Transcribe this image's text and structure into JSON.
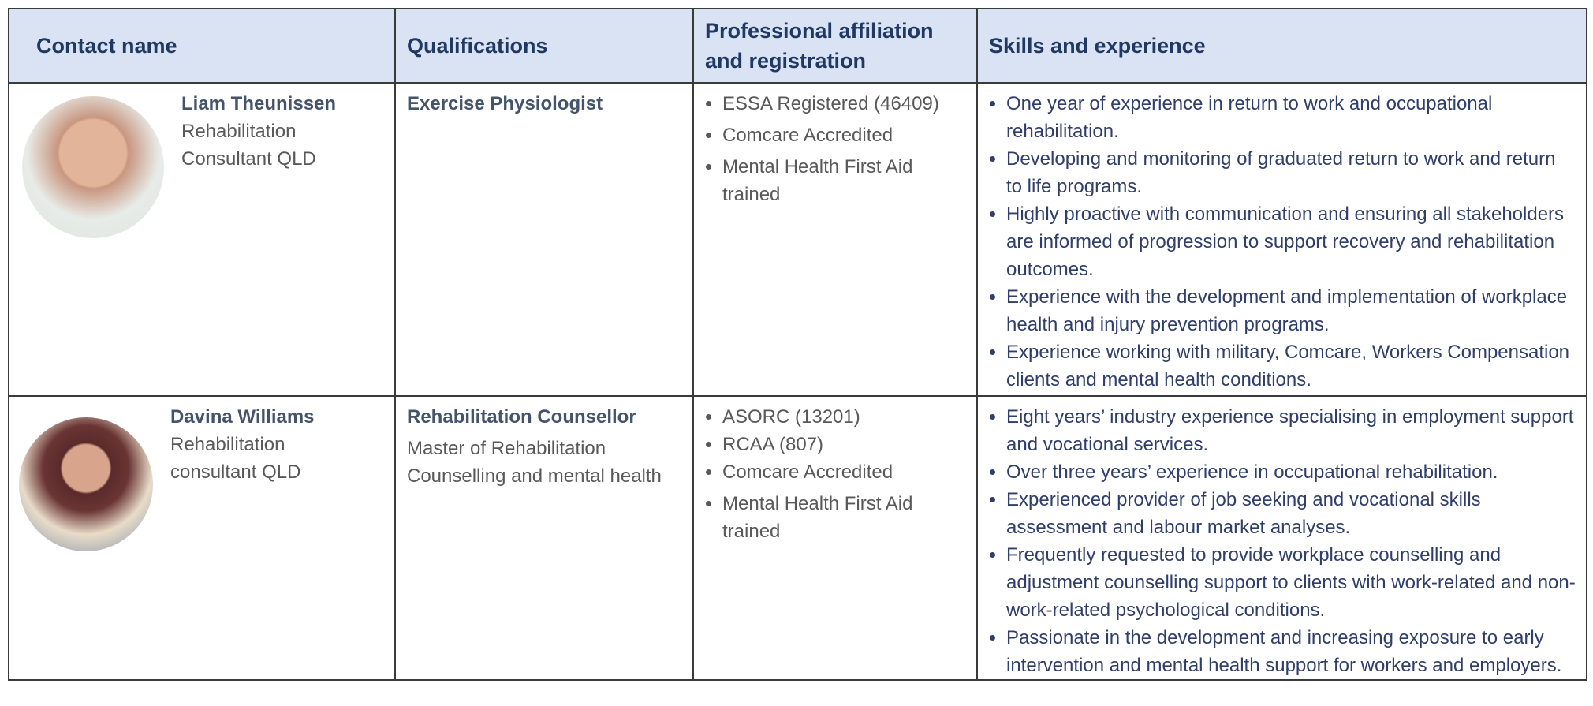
{
  "header": {
    "columns": [
      "Contact name",
      "Qualifications",
      "Professional affiliation and registration",
      "Skills and experience"
    ]
  },
  "rows": [
    {
      "name": "Liam Theunissen",
      "role": "Rehabilitation Consultant QLD",
      "qualification": "Exercise Physiologist",
      "affiliations": [
        "ESSA Registered (46409)",
        "Comcare Accredited",
        "Mental Health First Aid trained"
      ],
      "skills": [
        "One year of experience in return to work and occupational rehabilitation.",
        "Developing and monitoring of graduated return to work and return to life programs.",
        "Highly proactive with communication and ensuring all stakeholders are informed of progression to support recovery and rehabilitation outcomes.",
        "Experience with the development and implementation of workplace health and injury prevention programs.",
        "Experience working with military, Comcare, Workers Compensation clients and mental health conditions."
      ]
    },
    {
      "name": "Davina Williams",
      "role": "Rehabilitation consultant QLD",
      "qualification": "Rehabilitation Counsellor",
      "qualification_detail": "Master of Rehabilitation Counselling and mental health",
      "affiliations": [
        "ASORC (13201)",
        "RCAA (807)",
        "Comcare Accredited",
        "Mental Health First Aid trained"
      ],
      "skills": [
        "Eight years’ industry experience specialising in employment support and vocational services.",
        "Over three years’ experience in occupational rehabilitation.",
        "Experienced provider of job seeking and vocational skills assessment and labour market analyses.",
        "Frequently requested to provide workplace counselling and adjustment counselling support to clients with work-related and non-work-related psychological conditions.",
        "Passionate in the development and increasing exposure to early intervention and mental health support for workers and employers."
      ]
    }
  ]
}
